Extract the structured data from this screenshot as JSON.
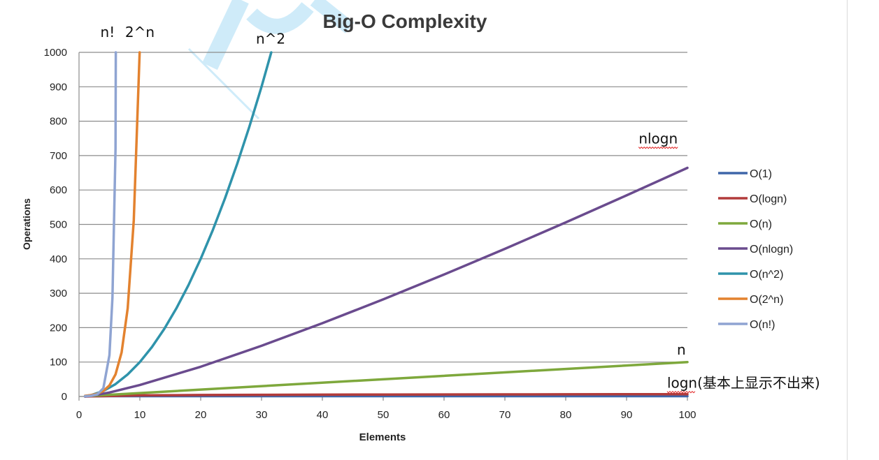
{
  "chart_data": {
    "type": "line",
    "title": "Big-O Complexity",
    "xlabel": "Elements",
    "ylabel": "Operations",
    "xlim": [
      0,
      100
    ],
    "ylim": [
      0,
      1000
    ],
    "x_ticks": [
      0,
      10,
      20,
      30,
      40,
      50,
      60,
      70,
      80,
      90,
      100
    ],
    "y_ticks": [
      0,
      100,
      200,
      300,
      400,
      500,
      600,
      700,
      800,
      900,
      1000
    ],
    "grid": "horizontal",
    "legend_position": "right",
    "series": [
      {
        "name": "O(1)",
        "color": "#3f66a9",
        "x": [
          1,
          100
        ],
        "y": [
          1,
          1
        ]
      },
      {
        "name": "O(logn)",
        "color": "#b23b3b",
        "x": [
          1,
          10,
          20,
          30,
          40,
          50,
          60,
          70,
          80,
          90,
          100
        ],
        "y": [
          0,
          3.3,
          4.3,
          4.9,
          5.3,
          5.6,
          5.9,
          6.1,
          6.3,
          6.5,
          6.6
        ]
      },
      {
        "name": "O(n)",
        "color": "#7ea83c",
        "x": [
          1,
          100
        ],
        "y": [
          1,
          100
        ]
      },
      {
        "name": "O(nlogn)",
        "color": "#6a4b8e",
        "x": [
          1,
          2,
          5,
          10,
          20,
          30,
          40,
          50,
          60,
          70,
          80,
          90,
          100
        ],
        "y": [
          0,
          2,
          11.6,
          33.2,
          86.4,
          147.2,
          212.9,
          282.2,
          354.4,
          429.1,
          505.8,
          584.3,
          664.4
        ]
      },
      {
        "name": "O(n^2)",
        "color": "#2f93ab",
        "x": [
          1,
          2,
          4,
          6,
          8,
          10,
          12,
          14,
          16,
          18,
          20,
          22,
          24,
          26,
          28,
          30,
          31.6
        ],
        "y": [
          1,
          4,
          16,
          36,
          64,
          100,
          144,
          196,
          256,
          324,
          400,
          484,
          576,
          676,
          784,
          900,
          1000
        ]
      },
      {
        "name": "O(2^n)",
        "color": "#e3822f",
        "x": [
          1,
          2,
          3,
          4,
          5,
          6,
          7,
          8,
          9,
          9.97
        ],
        "y": [
          2,
          4,
          8,
          16,
          32,
          64,
          128,
          256,
          512,
          1000
        ]
      },
      {
        "name": "O(n!)",
        "color": "#8fa4d2",
        "x": [
          1,
          2,
          3,
          4,
          5,
          5.5,
          6,
          6.05
        ],
        "y": [
          1,
          2,
          6,
          24,
          120,
          287,
          720,
          1000
        ]
      }
    ],
    "annotations": [
      {
        "text": "n!",
        "x": 4.7,
        "y": 1045
      },
      {
        "text": "2^n",
        "x": 10,
        "y": 1045
      },
      {
        "text": "n^2",
        "x": 31.5,
        "y": 1025
      },
      {
        "text": "nlogn",
        "x": 95.2,
        "y": 735
      },
      {
        "text": "n",
        "x": 99,
        "y": 122
      },
      {
        "text": "logn(基本上显示不出来)",
        "x": 98.5,
        "y": 25
      }
    ]
  }
}
